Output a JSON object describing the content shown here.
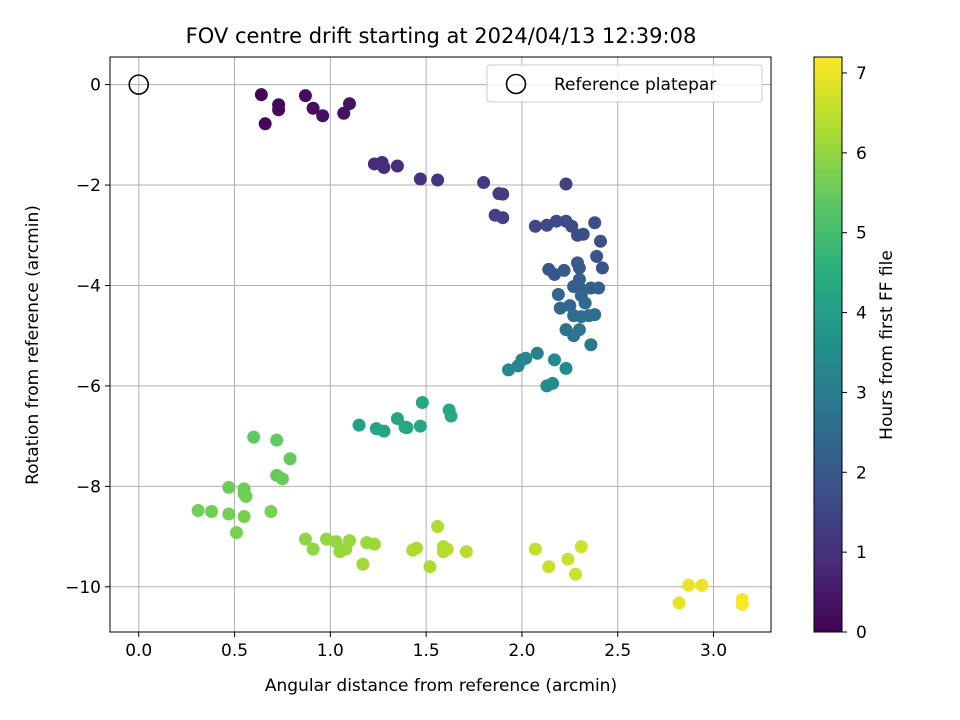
{
  "chart_data": {
    "type": "scatter",
    "title": "FOV centre drift starting at 2024/04/13 12:39:08",
    "xlabel": "Angular distance from reference (arcmin)",
    "ylabel": "Rotation from reference (arcmin)",
    "xlim": [
      -0.15,
      3.3
    ],
    "ylim": [
      -10.9,
      0.55
    ],
    "xticks": [
      0.0,
      0.5,
      1.0,
      1.5,
      2.0,
      2.5,
      3.0
    ],
    "xtick_labels": [
      "0.0",
      "0.5",
      "1.0",
      "1.5",
      "2.0",
      "2.5",
      "3.0"
    ],
    "yticks": [
      0,
      -2,
      -4,
      -6,
      -8,
      -10
    ],
    "ytick_labels": [
      "0",
      "−2",
      "−4",
      "−6",
      "−8",
      "−10"
    ],
    "grid": true,
    "colormap": "viridis",
    "colorbar": {
      "label": "Hours from first FF file",
      "range": [
        0,
        7.2
      ],
      "ticks": [
        0,
        1,
        2,
        3,
        4,
        5,
        6,
        7
      ],
      "tick_labels": [
        "0",
        "1",
        "2",
        "3",
        "4",
        "5",
        "6",
        "7"
      ]
    },
    "legend": {
      "position": "top-right",
      "label": "Reference platepar"
    },
    "reference_point": {
      "x": 0.0,
      "y": 0.0
    },
    "points": [
      {
        "x": 0.64,
        "y": -0.2,
        "t": 0.1
      },
      {
        "x": 0.66,
        "y": -0.78,
        "t": 0.12
      },
      {
        "x": 0.73,
        "y": -0.4,
        "t": 0.15
      },
      {
        "x": 0.73,
        "y": -0.5,
        "t": 0.18
      },
      {
        "x": 0.87,
        "y": -0.22,
        "t": 0.22
      },
      {
        "x": 0.91,
        "y": -0.47,
        "t": 0.26
      },
      {
        "x": 0.96,
        "y": -0.62,
        "t": 0.3
      },
      {
        "x": 1.07,
        "y": -0.57,
        "t": 0.35
      },
      {
        "x": 1.1,
        "y": -0.38,
        "t": 0.4
      },
      {
        "x": 1.23,
        "y": -1.58,
        "t": 0.85
      },
      {
        "x": 1.27,
        "y": -1.55,
        "t": 0.88
      },
      {
        "x": 1.28,
        "y": -1.65,
        "t": 0.9
      },
      {
        "x": 1.35,
        "y": -1.62,
        "t": 0.93
      },
      {
        "x": 1.47,
        "y": -1.88,
        "t": 1.05
      },
      {
        "x": 1.56,
        "y": -1.9,
        "t": 1.1
      },
      {
        "x": 1.8,
        "y": -1.95,
        "t": 1.25
      },
      {
        "x": 1.88,
        "y": -2.17,
        "t": 1.3
      },
      {
        "x": 1.9,
        "y": -2.18,
        "t": 1.32
      },
      {
        "x": 2.23,
        "y": -1.98,
        "t": 1.35
      },
      {
        "x": 1.86,
        "y": -2.6,
        "t": 1.38
      },
      {
        "x": 1.9,
        "y": -2.65,
        "t": 1.42
      },
      {
        "x": 2.07,
        "y": -2.82,
        "t": 1.55
      },
      {
        "x": 2.13,
        "y": -2.8,
        "t": 1.58
      },
      {
        "x": 2.18,
        "y": -2.72,
        "t": 1.6
      },
      {
        "x": 2.23,
        "y": -2.72,
        "t": 1.62
      },
      {
        "x": 2.26,
        "y": -2.82,
        "t": 1.65
      },
      {
        "x": 2.29,
        "y": -3.0,
        "t": 1.68
      },
      {
        "x": 2.32,
        "y": -2.98,
        "t": 1.7
      },
      {
        "x": 2.38,
        "y": -2.75,
        "t": 1.72
      },
      {
        "x": 2.41,
        "y": -3.12,
        "t": 1.75
      },
      {
        "x": 2.39,
        "y": -3.42,
        "t": 1.8
      },
      {
        "x": 2.42,
        "y": -3.65,
        "t": 1.85
      },
      {
        "x": 2.14,
        "y": -3.68,
        "t": 1.95
      },
      {
        "x": 2.17,
        "y": -3.78,
        "t": 1.98
      },
      {
        "x": 2.22,
        "y": -3.7,
        "t": 2.0
      },
      {
        "x": 2.29,
        "y": -3.55,
        "t": 2.03
      },
      {
        "x": 2.3,
        "y": -3.65,
        "t": 2.06
      },
      {
        "x": 2.3,
        "y": -3.88,
        "t": 2.1
      },
      {
        "x": 2.27,
        "y": -4.02,
        "t": 2.15
      },
      {
        "x": 2.31,
        "y": -4.08,
        "t": 2.18
      },
      {
        "x": 2.36,
        "y": -4.05,
        "t": 2.22
      },
      {
        "x": 2.4,
        "y": -4.05,
        "t": 2.25
      },
      {
        "x": 2.19,
        "y": -4.18,
        "t": 2.3
      },
      {
        "x": 2.31,
        "y": -4.2,
        "t": 2.35
      },
      {
        "x": 2.2,
        "y": -4.45,
        "t": 2.4
      },
      {
        "x": 2.25,
        "y": -4.4,
        "t": 2.45
      },
      {
        "x": 2.33,
        "y": -4.35,
        "t": 2.5
      },
      {
        "x": 2.27,
        "y": -4.6,
        "t": 2.55
      },
      {
        "x": 2.31,
        "y": -4.62,
        "t": 2.58
      },
      {
        "x": 2.35,
        "y": -4.6,
        "t": 2.6
      },
      {
        "x": 2.38,
        "y": -4.58,
        "t": 2.62
      },
      {
        "x": 2.23,
        "y": -4.88,
        "t": 2.75
      },
      {
        "x": 2.27,
        "y": -5.0,
        "t": 2.8
      },
      {
        "x": 2.3,
        "y": -4.88,
        "t": 2.82
      },
      {
        "x": 2.36,
        "y": -5.18,
        "t": 2.9
      },
      {
        "x": 2.08,
        "y": -5.35,
        "t": 3.2
      },
      {
        "x": 2.02,
        "y": -5.45,
        "t": 3.25
      },
      {
        "x": 2.0,
        "y": -5.48,
        "t": 3.28
      },
      {
        "x": 1.98,
        "y": -5.6,
        "t": 3.3
      },
      {
        "x": 1.93,
        "y": -5.68,
        "t": 3.33
      },
      {
        "x": 2.17,
        "y": -5.48,
        "t": 3.38
      },
      {
        "x": 2.23,
        "y": -5.65,
        "t": 3.42
      },
      {
        "x": 2.13,
        "y": -6.0,
        "t": 3.5
      },
      {
        "x": 2.16,
        "y": -5.95,
        "t": 3.52
      },
      {
        "x": 1.15,
        "y": -6.78,
        "t": 4.1
      },
      {
        "x": 1.24,
        "y": -6.85,
        "t": 4.15
      },
      {
        "x": 1.28,
        "y": -6.9,
        "t": 4.18
      },
      {
        "x": 1.35,
        "y": -6.65,
        "t": 4.2
      },
      {
        "x": 1.39,
        "y": -6.82,
        "t": 4.22
      },
      {
        "x": 1.4,
        "y": -6.83,
        "t": 4.24
      },
      {
        "x": 1.47,
        "y": -6.8,
        "t": 4.26
      },
      {
        "x": 1.48,
        "y": -6.33,
        "t": 4.28
      },
      {
        "x": 1.62,
        "y": -6.48,
        "t": 4.32
      },
      {
        "x": 1.63,
        "y": -6.6,
        "t": 4.35
      },
      {
        "x": 0.6,
        "y": -7.02,
        "t": 5.4
      },
      {
        "x": 0.72,
        "y": -7.08,
        "t": 5.42
      },
      {
        "x": 0.79,
        "y": -7.45,
        "t": 5.45
      },
      {
        "x": 0.72,
        "y": -7.78,
        "t": 5.47
      },
      {
        "x": 0.75,
        "y": -7.85,
        "t": 5.5
      },
      {
        "x": 0.47,
        "y": -8.02,
        "t": 5.53
      },
      {
        "x": 0.55,
        "y": -8.05,
        "t": 5.55
      },
      {
        "x": 0.55,
        "y": -8.15,
        "t": 5.57
      },
      {
        "x": 0.56,
        "y": -8.2,
        "t": 5.6
      },
      {
        "x": 0.31,
        "y": -8.48,
        "t": 5.62
      },
      {
        "x": 0.38,
        "y": -8.5,
        "t": 5.64
      },
      {
        "x": 0.47,
        "y": -8.55,
        "t": 5.66
      },
      {
        "x": 0.55,
        "y": -8.6,
        "t": 5.68
      },
      {
        "x": 0.69,
        "y": -8.5,
        "t": 5.7
      },
      {
        "x": 0.51,
        "y": -8.92,
        "t": 5.72
      },
      {
        "x": 0.87,
        "y": -9.05,
        "t": 5.95
      },
      {
        "x": 0.91,
        "y": -9.25,
        "t": 5.98
      },
      {
        "x": 0.98,
        "y": -9.05,
        "t": 6.0
      },
      {
        "x": 1.03,
        "y": -9.1,
        "t": 6.02
      },
      {
        "x": 1.05,
        "y": -9.3,
        "t": 6.05
      },
      {
        "x": 1.08,
        "y": -9.25,
        "t": 6.07
      },
      {
        "x": 1.1,
        "y": -9.08,
        "t": 6.09
      },
      {
        "x": 1.19,
        "y": -9.12,
        "t": 6.1
      },
      {
        "x": 1.23,
        "y": -9.15,
        "t": 6.12
      },
      {
        "x": 1.17,
        "y": -9.55,
        "t": 6.15
      },
      {
        "x": 1.43,
        "y": -9.27,
        "t": 6.25
      },
      {
        "x": 1.45,
        "y": -9.23,
        "t": 6.27
      },
      {
        "x": 1.52,
        "y": -9.6,
        "t": 6.3
      },
      {
        "x": 1.56,
        "y": -8.8,
        "t": 6.32
      },
      {
        "x": 1.59,
        "y": -9.2,
        "t": 6.34
      },
      {
        "x": 1.59,
        "y": -9.3,
        "t": 6.36
      },
      {
        "x": 1.61,
        "y": -9.25,
        "t": 6.38
      },
      {
        "x": 1.71,
        "y": -9.3,
        "t": 6.4
      },
      {
        "x": 2.07,
        "y": -9.25,
        "t": 6.55
      },
      {
        "x": 2.14,
        "y": -9.6,
        "t": 6.6
      },
      {
        "x": 2.24,
        "y": -9.45,
        "t": 6.62
      },
      {
        "x": 2.28,
        "y": -9.75,
        "t": 6.65
      },
      {
        "x": 2.31,
        "y": -9.2,
        "t": 6.67
      },
      {
        "x": 2.82,
        "y": -10.32,
        "t": 6.95
      },
      {
        "x": 2.87,
        "y": -9.97,
        "t": 6.98
      },
      {
        "x": 2.94,
        "y": -9.97,
        "t": 7.0
      },
      {
        "x": 3.15,
        "y": -10.25,
        "t": 7.12
      },
      {
        "x": 3.15,
        "y": -10.35,
        "t": 7.15
      }
    ]
  }
}
